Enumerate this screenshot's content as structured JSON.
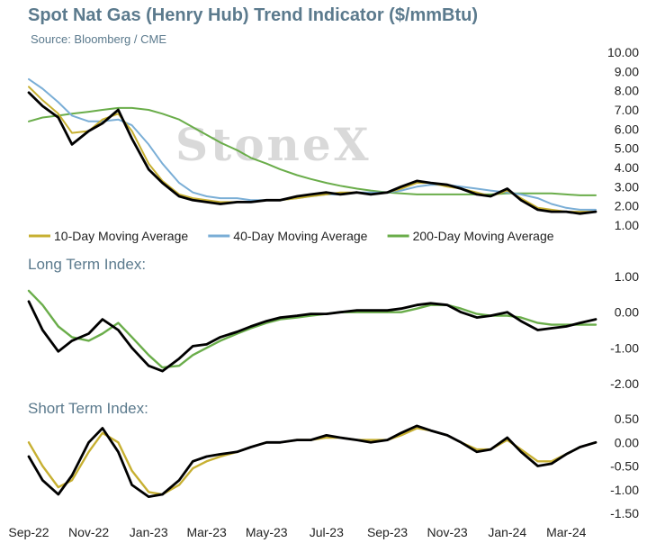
{
  "header": {
    "title": "Spot Nat Gas (Henry Hub) Trend Indicator ($/mmBtu)",
    "subtitle": "Source: Bloomberg / CME"
  },
  "watermark": "StoneX",
  "colors": {
    "price": "#000000",
    "ma10": "#c7b032",
    "ma40": "#7aaed6",
    "ma200": "#6aad4a",
    "long_index": "#6aad4a",
    "short_index": "#c7b032",
    "titles": "#5b7a8d"
  },
  "chart_data": [
    {
      "type": "line",
      "title": "Spot Nat Gas (Henry Hub) Trend Indicator ($/mmBtu)",
      "x": [
        "2022-09-01",
        "2022-09-15",
        "2022-10-01",
        "2022-10-15",
        "2022-11-01",
        "2022-11-15",
        "2022-12-01",
        "2022-12-15",
        "2023-01-01",
        "2023-01-15",
        "2023-02-01",
        "2023-02-15",
        "2023-03-01",
        "2023-03-15",
        "2023-04-01",
        "2023-04-15",
        "2023-05-01",
        "2023-05-15",
        "2023-06-01",
        "2023-06-15",
        "2023-07-01",
        "2023-07-15",
        "2023-08-01",
        "2023-08-15",
        "2023-09-01",
        "2023-09-15",
        "2023-10-01",
        "2023-10-15",
        "2023-11-01",
        "2023-11-15",
        "2023-12-01",
        "2023-12-15",
        "2024-01-01",
        "2024-01-15",
        "2024-02-01",
        "2024-02-15",
        "2024-03-01",
        "2024-03-15",
        "2024-03-31"
      ],
      "series": [
        {
          "name": "",
          "color": "#000000",
          "values": [
            7.9,
            7.2,
            6.6,
            5.2,
            5.9,
            6.3,
            7.0,
            5.5,
            3.9,
            3.2,
            2.5,
            2.3,
            2.2,
            2.1,
            2.2,
            2.2,
            2.3,
            2.3,
            2.5,
            2.6,
            2.7,
            2.6,
            2.7,
            2.6,
            2.7,
            3.0,
            3.3,
            3.2,
            3.1,
            2.9,
            2.6,
            2.5,
            2.9,
            2.3,
            1.8,
            1.7,
            1.7,
            1.6,
            1.7
          ]
        },
        {
          "name": "10-Day Moving Average",
          "color": "#c7b032",
          "values": [
            8.2,
            7.5,
            6.8,
            5.8,
            5.9,
            6.5,
            6.8,
            5.9,
            4.2,
            3.3,
            2.6,
            2.4,
            2.3,
            2.2,
            2.2,
            2.2,
            2.3,
            2.3,
            2.4,
            2.5,
            2.6,
            2.7,
            2.7,
            2.6,
            2.7,
            2.9,
            3.2,
            3.2,
            3.0,
            2.9,
            2.7,
            2.5,
            2.8,
            2.4,
            1.9,
            1.8,
            1.7,
            1.7,
            1.7
          ]
        },
        {
          "name": "40-Day Moving Average",
          "color": "#7aaed6",
          "values": [
            8.6,
            8.1,
            7.4,
            6.7,
            6.4,
            6.4,
            6.5,
            6.2,
            5.2,
            4.2,
            3.2,
            2.7,
            2.5,
            2.4,
            2.4,
            2.3,
            2.3,
            2.3,
            2.4,
            2.5,
            2.6,
            2.6,
            2.7,
            2.7,
            2.7,
            2.8,
            3.0,
            3.1,
            3.1,
            3.0,
            2.9,
            2.8,
            2.7,
            2.6,
            2.4,
            2.1,
            1.9,
            1.8,
            1.8
          ]
        },
        {
          "name": "200-Day Moving Average",
          "color": "#6aad4a",
          "values": [
            6.4,
            6.6,
            6.7,
            6.8,
            6.9,
            7.0,
            7.1,
            7.1,
            7.0,
            6.8,
            6.5,
            6.1,
            5.7,
            5.3,
            4.9,
            4.5,
            4.2,
            3.9,
            3.6,
            3.4,
            3.2,
            3.05,
            2.9,
            2.8,
            2.7,
            2.65,
            2.6,
            2.6,
            2.6,
            2.6,
            2.6,
            2.6,
            2.65,
            2.65,
            2.65,
            2.65,
            2.6,
            2.55,
            2.55
          ]
        }
      ],
      "ylim": [
        1,
        10
      ],
      "yticks": [
        "10.00",
        "9.00",
        "8.00",
        "7.00",
        "6.00",
        "5.00",
        "4.00",
        "3.00",
        "2.00",
        "1.00"
      ],
      "legend": "bottom",
      "grid": false
    },
    {
      "type": "line",
      "title": "Long Term Index:",
      "x": [
        "2022-09-01",
        "2022-09-15",
        "2022-10-01",
        "2022-10-15",
        "2022-11-01",
        "2022-11-15",
        "2022-12-01",
        "2022-12-15",
        "2023-01-01",
        "2023-01-15",
        "2023-02-01",
        "2023-02-15",
        "2023-03-01",
        "2023-03-15",
        "2023-04-01",
        "2023-04-15",
        "2023-05-01",
        "2023-05-15",
        "2023-06-01",
        "2023-06-15",
        "2023-07-01",
        "2023-07-15",
        "2023-08-01",
        "2023-08-15",
        "2023-09-01",
        "2023-09-15",
        "2023-10-01",
        "2023-10-15",
        "2023-11-01",
        "2023-11-15",
        "2023-12-01",
        "2023-12-15",
        "2024-01-01",
        "2024-01-15",
        "2024-02-01",
        "2024-02-15",
        "2024-03-01",
        "2024-03-15",
        "2024-03-31"
      ],
      "series": [
        {
          "name": "",
          "color": "#000000",
          "values": [
            0.3,
            -0.5,
            -1.1,
            -0.8,
            -0.6,
            -0.2,
            -0.5,
            -1.0,
            -1.5,
            -1.65,
            -1.3,
            -0.95,
            -0.9,
            -0.7,
            -0.55,
            -0.4,
            -0.25,
            -0.15,
            -0.1,
            -0.05,
            -0.05,
            0.0,
            0.05,
            0.05,
            0.05,
            0.1,
            0.2,
            0.25,
            0.2,
            0.0,
            -0.15,
            -0.1,
            0.0,
            -0.25,
            -0.5,
            -0.45,
            -0.4,
            -0.3,
            -0.2
          ]
        },
        {
          "name": "",
          "color": "#6aad4a",
          "values": [
            0.6,
            0.2,
            -0.4,
            -0.7,
            -0.8,
            -0.6,
            -0.3,
            -0.7,
            -1.2,
            -1.55,
            -1.5,
            -1.2,
            -1.0,
            -0.8,
            -0.6,
            -0.45,
            -0.3,
            -0.2,
            -0.15,
            -0.1,
            -0.05,
            0.0,
            0.0,
            0.0,
            0.0,
            0.0,
            0.1,
            0.2,
            0.2,
            0.1,
            -0.05,
            -0.1,
            -0.1,
            -0.15,
            -0.3,
            -0.35,
            -0.35,
            -0.35,
            -0.35
          ]
        }
      ],
      "ylim": [
        -2,
        1
      ],
      "yticks": [
        "1.00",
        "0.00",
        "-1.00",
        "-2.00"
      ],
      "grid": false
    },
    {
      "type": "line",
      "title": "Short Term Index:",
      "x": [
        "2022-09-01",
        "2022-09-15",
        "2022-10-01",
        "2022-10-15",
        "2022-11-01",
        "2022-11-15",
        "2022-12-01",
        "2022-12-15",
        "2023-01-01",
        "2023-01-15",
        "2023-02-01",
        "2023-02-15",
        "2023-03-01",
        "2023-03-15",
        "2023-04-01",
        "2023-04-15",
        "2023-05-01",
        "2023-05-15",
        "2023-06-01",
        "2023-06-15",
        "2023-07-01",
        "2023-07-15",
        "2023-08-01",
        "2023-08-15",
        "2023-09-01",
        "2023-09-15",
        "2023-10-01",
        "2023-10-15",
        "2023-11-01",
        "2023-11-15",
        "2023-12-01",
        "2023-12-15",
        "2024-01-01",
        "2024-01-15",
        "2024-02-01",
        "2024-02-15",
        "2024-03-01",
        "2024-03-15",
        "2024-03-31"
      ],
      "series": [
        {
          "name": "",
          "color": "#000000",
          "values": [
            -0.3,
            -0.8,
            -1.1,
            -0.7,
            0.0,
            0.3,
            -0.2,
            -0.9,
            -1.15,
            -1.1,
            -0.8,
            -0.4,
            -0.3,
            -0.25,
            -0.2,
            -0.1,
            0.0,
            0.0,
            0.05,
            0.05,
            0.15,
            0.1,
            0.05,
            0.0,
            0.05,
            0.2,
            0.35,
            0.25,
            0.15,
            0.0,
            -0.2,
            -0.15,
            0.1,
            -0.2,
            -0.5,
            -0.45,
            -0.25,
            -0.1,
            0.0
          ]
        },
        {
          "name": "",
          "color": "#c7b032",
          "values": [
            0.0,
            -0.5,
            -0.95,
            -0.8,
            -0.2,
            0.2,
            0.0,
            -0.6,
            -1.05,
            -1.1,
            -0.9,
            -0.55,
            -0.4,
            -0.3,
            -0.2,
            -0.1,
            0.0,
            0.0,
            0.05,
            0.05,
            0.1,
            0.1,
            0.05,
            0.05,
            0.05,
            0.15,
            0.3,
            0.25,
            0.15,
            0.0,
            -0.15,
            -0.15,
            0.05,
            -0.15,
            -0.4,
            -0.4,
            -0.25,
            -0.1,
            0.0
          ]
        }
      ],
      "ylim": [
        -1.5,
        0.5
      ],
      "yticks": [
        "0.50",
        "0.00",
        "-0.50",
        "-1.00",
        "-1.50"
      ],
      "grid": false
    }
  ],
  "x_axis": {
    "ticks": [
      "Sep-22",
      "Nov-22",
      "Jan-23",
      "Mar-23",
      "May-23",
      "Jul-23",
      "Sep-23",
      "Nov-23",
      "Jan-24",
      "Mar-24"
    ],
    "tick_dates": [
      "2022-09-01",
      "2022-11-01",
      "2023-01-01",
      "2023-03-01",
      "2023-05-01",
      "2023-07-01",
      "2023-09-01",
      "2023-11-01",
      "2024-01-01",
      "2024-03-01"
    ]
  }
}
